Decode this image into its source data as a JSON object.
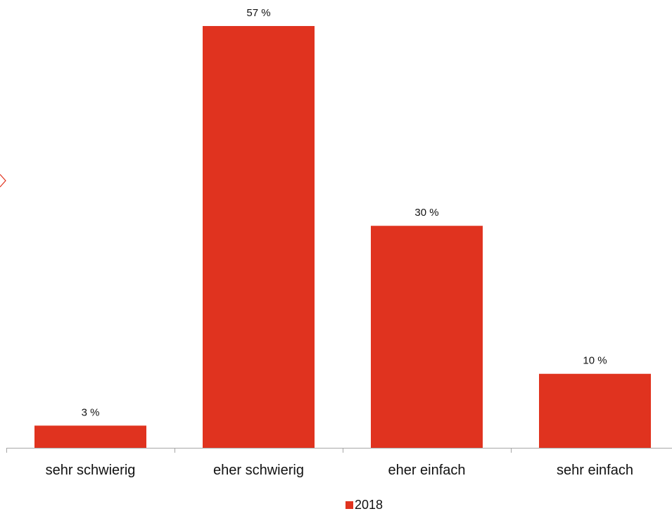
{
  "chart_data": {
    "type": "bar",
    "categories": [
      "sehr schwierig",
      "eher schwierig",
      "eher einfach",
      "sehr einfach"
    ],
    "series": [
      {
        "name": "2018",
        "values": [
          3,
          57,
          30,
          10
        ],
        "labels": [
          "3 %",
          "57 %",
          "30 %",
          "10 %"
        ]
      }
    ],
    "ylim": [
      0,
      60
    ],
    "grid": false,
    "legend_position": "bottom",
    "colors": {
      "bar": "#e0331f",
      "axis": "#a6a6a6",
      "text": "#111111",
      "marker": "#e0331f"
    }
  }
}
